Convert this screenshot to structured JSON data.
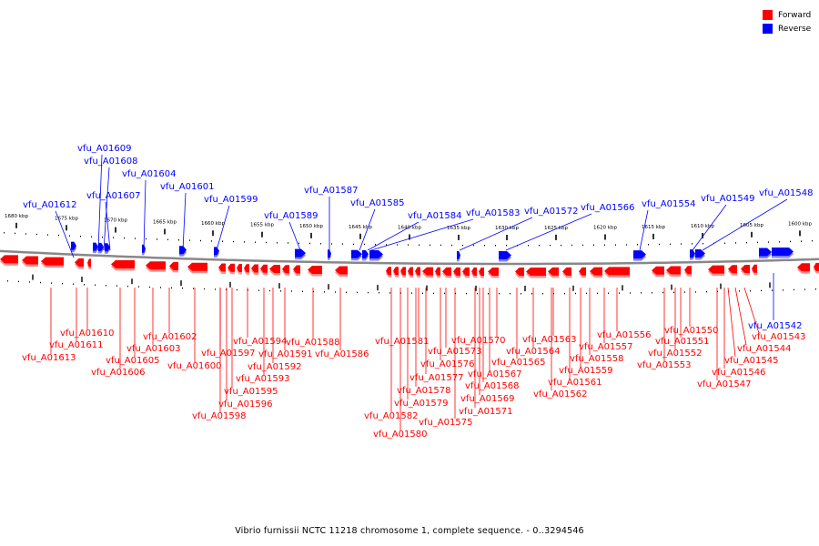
{
  "legend": [
    {
      "label": "Forward",
      "color": "#ff0000"
    },
    {
      "label": "Reverse",
      "color": "#0000ff"
    }
  ],
  "caption": "Vibrio furnissii NCTC 11218 chromosome 1, complete sequence. - 0..3294546",
  "colors": {
    "forward": "#ff0000",
    "forward_shadow": "#ff9090",
    "reverse": "#0000ff",
    "reverse_shadow": "#8080ff",
    "backbone": "#888888"
  },
  "scale": {
    "ticks": [
      "1680 kbp",
      "1675 kbp",
      "1670 kbp",
      "1665 kbp",
      "1660 kbp",
      "1655 kbp",
      "1650 kbp",
      "1645 kbp",
      "1640 kbp",
      "1635 kbp",
      "1630 kbp",
      "1625 kbp",
      "1620 kbp",
      "1615 kbp",
      "1610 kbp",
      "1605 kbp",
      "1600 kbp"
    ]
  },
  "reverse_labels": [
    "vfu_A01612",
    "vfu_A01609",
    "vfu_A01608",
    "vfu_A01607",
    "vfu_A01604",
    "vfu_A01601",
    "vfu_A01599",
    "vfu_A01589",
    "vfu_A01587",
    "vfu_A01585",
    "vfu_A01584",
    "vfu_A01583",
    "vfu_A01572",
    "vfu_A01566",
    "vfu_A01554",
    "vfu_A01549",
    "vfu_A01548",
    "vfu_A01542"
  ],
  "forward_labels": [
    "vfu_A01610",
    "vfu_A01611",
    "vfu_A01613",
    "vfu_A01602",
    "vfu_A01603",
    "vfu_A01605",
    "vfu_A01606",
    "vfu_A01600",
    "vfu_A01594",
    "vfu_A01597",
    "vfu_A01591",
    "vfu_A01592",
    "vfu_A01595",
    "vfu_A01593",
    "vfu_A01596",
    "vfu_A01598",
    "vfu_A01588",
    "vfu_A01586",
    "vfu_A01581",
    "vfu_A01573",
    "vfu_A01576",
    "vfu_A01577",
    "vfu_A01578",
    "vfu_A01579",
    "vfu_A01582",
    "vfu_A01580",
    "vfu_A01570",
    "vfu_A01567",
    "vfu_A01568",
    "vfu_A01569",
    "vfu_A01571",
    "vfu_A01575",
    "vfu_A01563",
    "vfu_A01564",
    "vfu_A01565",
    "vfu_A01557",
    "vfu_A01556",
    "vfu_A01558",
    "vfu_A01559",
    "vfu_A01561",
    "vfu_A01562",
    "vfu_A01550",
    "vfu_A01551",
    "vfu_A01552",
    "vfu_A01553",
    "vfu_A01543",
    "vfu_A01544",
    "vfu_A01545",
    "vfu_A01546",
    "vfu_A01547"
  ]
}
